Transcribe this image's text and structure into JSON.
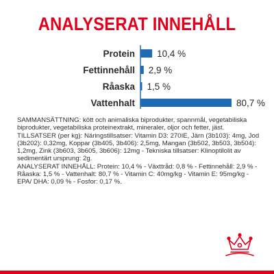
{
  "chart_data": {
    "type": "bar",
    "orientation": "horizontal",
    "title": "ANALYSERAT INNEHÅLL",
    "categories": [
      "Protein",
      "Fettinnehåll",
      "Råaska",
      "Vattenhalt"
    ],
    "values": [
      10.4,
      2.9,
      1.5,
      80.7
    ],
    "value_labels": [
      "10,4 %",
      "2,9 %",
      "1,5 %",
      "80,7 %"
    ],
    "xlim": [
      0,
      80.7
    ],
    "grid": false,
    "bar_color": "#1f6bb3"
  },
  "colors": {
    "brand_red": "#e2001a",
    "bar_blue": "#1f6bb3",
    "text": "#2a2a2a"
  },
  "ingredients": {
    "composition_label": "SAMMANSÄTTNING:",
    "composition_text": "kött och animaliska biprodukter, spannmål, vegetabiliska biprodukter, vegetabiliska proteinextrakt, mineraler, oljor och fetter, jäst.",
    "additives_label": "TILLSATSER (per kg):",
    "additives_text": "Näringstillsatser: Vitamin D3: 270IE, Järn (3b103): 4mg, Jod (3b202): 0,32mg, Koppar (3b405, 3b406): 2,5mg, Mangan (3b502, 3b503, 3b504): 1,2mg, Zink (3b603, 3b605, 3b606): 12mg - Tekniska tillsatser: Klinoptilolit av sedimentärt ursprung: 2g.",
    "analysis_label": "ANALYSERAT INNEHÅLL:",
    "analysis_text": "Protein: 10,4 % - Växttråd: 0,8 % - Fettinnehåll: 2,9 % - Råaska: 1,5 % - Vattenhalt: 80,7 % - Vitamin C: 40mg/kg - Vitamin E: 95mg/kg - EPA/ DHA: 0,09 % - Fosfor: 0,17 %."
  },
  "logo": {
    "icon": "royal-canin-crown-icon"
  }
}
